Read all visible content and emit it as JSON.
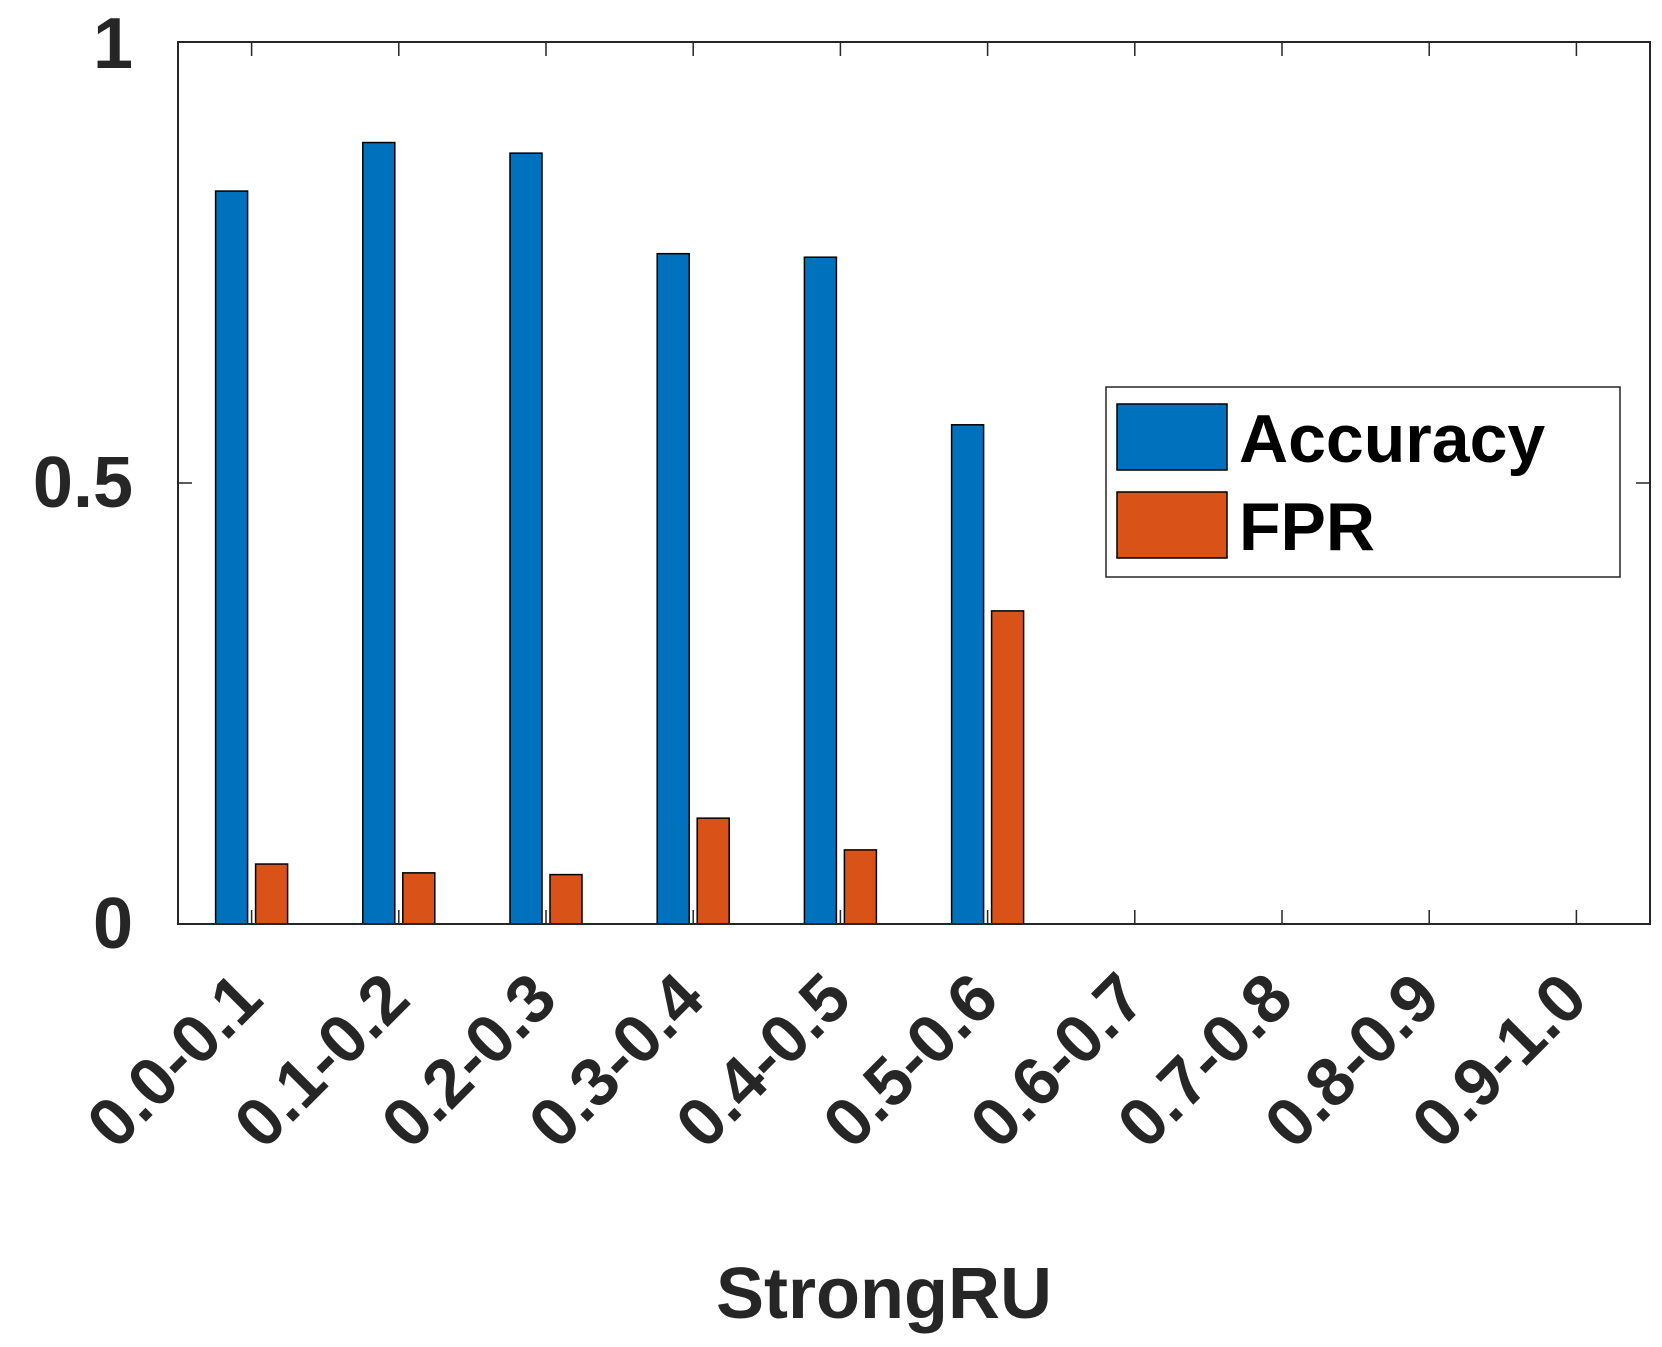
{
  "chart_data": {
    "type": "bar",
    "categories": [
      "0.0-0.1",
      "0.1-0.2",
      "0.2-0.3",
      "0.3-0.4",
      "0.4-0.5",
      "0.5-0.6",
      "0.6-0.7",
      "0.7-0.8",
      "0.8-0.9",
      "0.9-1.0"
    ],
    "series": [
      {
        "name": "Accuracy",
        "color": "#0072BD",
        "values": [
          0.831,
          0.886,
          0.874,
          0.76,
          0.756,
          0.566,
          0,
          0,
          0,
          0
        ]
      },
      {
        "name": "FPR",
        "color": "#D95319",
        "values": [
          0.068,
          0.058,
          0.056,
          0.12,
          0.084,
          0.355,
          0,
          0,
          0,
          0
        ]
      }
    ],
    "title": "",
    "xlabel": "StrongRU",
    "ylabel": "",
    "ylim": [
      0,
      1
    ],
    "yticks": [
      0,
      0.5,
      1
    ],
    "ytick_labels": [
      "0",
      "0.5",
      "1"
    ],
    "grid": false,
    "legend_position": "right"
  }
}
